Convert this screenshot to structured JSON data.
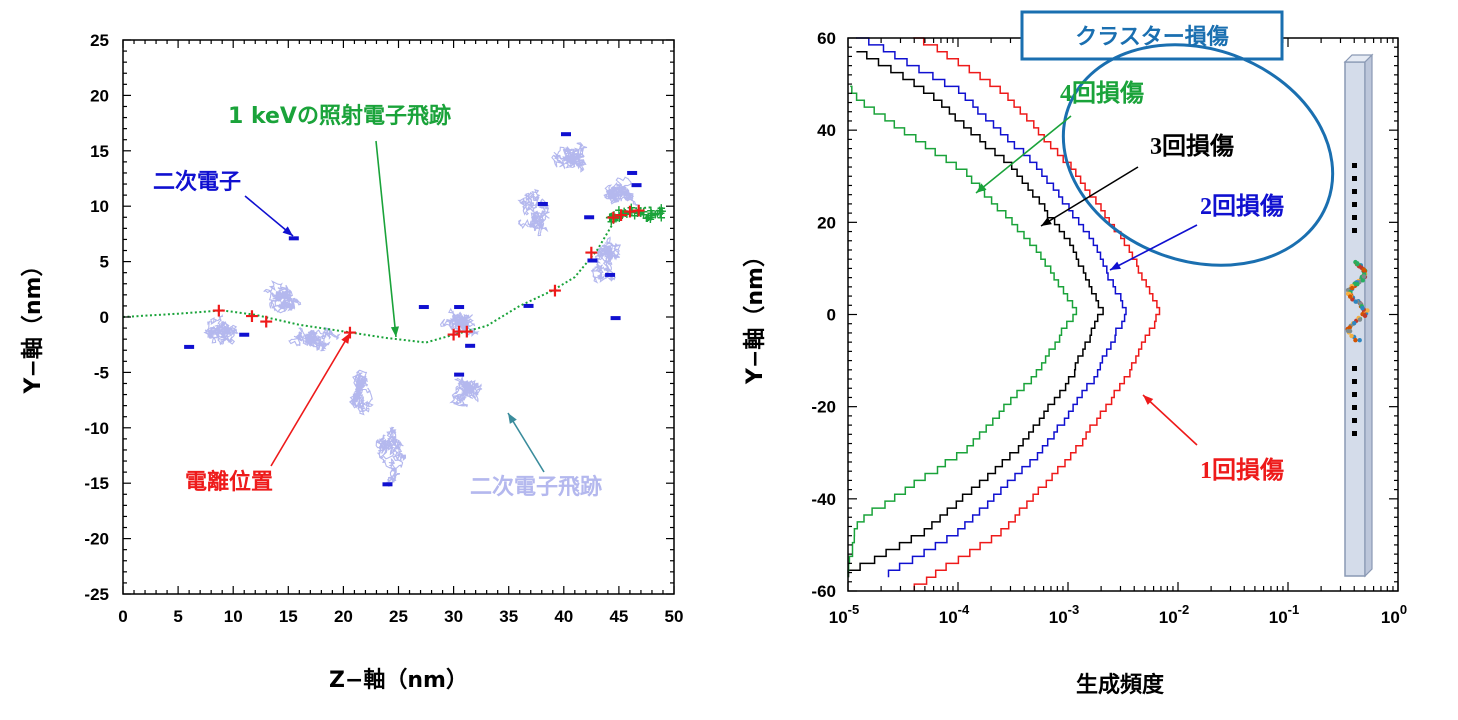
{
  "colors": {
    "green": "#1aa33a",
    "blue": "#1010d0",
    "red": "#ee1a1a",
    "black": "#000000",
    "lavender": "#b4b8ee",
    "teal": "#3a8c9c",
    "ellipse": "#1a6fb0",
    "banner_text": "#1a6fb0"
  },
  "chart_data": [
    {
      "type": "scatter",
      "xlabel": "Z−軸（nm）",
      "ylabel": "Y−軸（nm）",
      "xlim": [
        0,
        50
      ],
      "ylim": [
        -25,
        25
      ],
      "x_ticks": [
        "0",
        "5",
        "10",
        "15",
        "20",
        "25",
        "30",
        "35",
        "40",
        "45",
        "50"
      ],
      "y_ticks": [
        "25",
        "20",
        "15",
        "10",
        "5",
        "0",
        "-5",
        "-10",
        "-15",
        "-20",
        "-25"
      ],
      "grid": false,
      "annotations": {
        "primary": "1 keVの照射電子飛跡",
        "secondary_electron": "二次電子",
        "ionization": "電離位置",
        "secondary_track": "二次電子飛跡"
      },
      "primary_track": [
        [
          0,
          0
        ],
        [
          5,
          0.3
        ],
        [
          9,
          0.6
        ],
        [
          12,
          0.2
        ],
        [
          16,
          -0.7
        ],
        [
          20,
          -1.3
        ],
        [
          24,
          -1.9
        ],
        [
          27.5,
          -2.3
        ],
        [
          30,
          -1.6
        ],
        [
          33,
          -0.8
        ],
        [
          36,
          1.0
        ],
        [
          39,
          2.4
        ],
        [
          41,
          3.6
        ],
        [
          43,
          6.0
        ],
        [
          44.5,
          8.5
        ],
        [
          46.5,
          9.8
        ],
        [
          48,
          9.9
        ]
      ],
      "ionization_points": [
        [
          8.7,
          0.6
        ],
        [
          11.7,
          0.1
        ],
        [
          13,
          -0.4
        ],
        [
          20.6,
          -1.4
        ],
        [
          30,
          -1.6
        ],
        [
          30.5,
          -1.3
        ],
        [
          31.2,
          -1.3
        ],
        [
          39.2,
          2.4
        ],
        [
          42.5,
          5.8
        ],
        [
          44.5,
          9.0
        ],
        [
          45.2,
          9.2
        ],
        [
          46,
          9.5
        ],
        [
          46.8,
          9.6
        ]
      ],
      "secondary_endpoints": [
        [
          6,
          -2.7
        ],
        [
          11,
          -1.6
        ],
        [
          15.5,
          7.1
        ],
        [
          24,
          -15.1
        ],
        [
          27.3,
          0.9
        ],
        [
          30.5,
          0.9
        ],
        [
          31.5,
          -2.6
        ],
        [
          30.5,
          -5.2
        ],
        [
          36.8,
          1.0
        ],
        [
          38.1,
          10.2
        ],
        [
          40.2,
          16.5
        ],
        [
          42.3,
          9.0
        ],
        [
          42.6,
          5.1
        ],
        [
          44.2,
          3.8
        ],
        [
          46.2,
          13.0
        ],
        [
          46.6,
          11.9
        ],
        [
          44.7,
          -0.1
        ]
      ],
      "secondary_clusters": [
        {
          "cx": 8.5,
          "cy": -1.5,
          "sx": 3.0,
          "sy": 1.8
        },
        {
          "cx": 14.5,
          "cy": 2.0,
          "sx": 2.0,
          "sy": 3.5
        },
        {
          "cx": 17.5,
          "cy": -2.0,
          "sx": 2.5,
          "sy": 1.5
        },
        {
          "cx": 21.5,
          "cy": -6.5,
          "sx": 1.5,
          "sy": 4.0
        },
        {
          "cx": 24.5,
          "cy": -11.5,
          "sx": 1.8,
          "sy": 2.8
        },
        {
          "cx": 30.5,
          "cy": -0.5,
          "sx": 1.8,
          "sy": 1.8
        },
        {
          "cx": 31.0,
          "cy": -6.5,
          "sx": 2.2,
          "sy": 1.6
        },
        {
          "cx": 37.5,
          "cy": 9.0,
          "sx": 2.2,
          "sy": 3.5
        },
        {
          "cx": 41.0,
          "cy": 14.5,
          "sx": 2.0,
          "sy": 1.8
        },
        {
          "cx": 44.0,
          "cy": 5.0,
          "sx": 1.8,
          "sy": 3.5
        },
        {
          "cx": 45.5,
          "cy": 11.0,
          "sx": 2.0,
          "sy": 2.2
        }
      ]
    },
    {
      "type": "line",
      "xlabel": "生成頻度",
      "ylabel": "Y−軸（nm）",
      "x_scale": "log",
      "xlim": [
        1e-05,
        1
      ],
      "ylim": [
        -60,
        60
      ],
      "x_ticks": [
        {
          "base": "10",
          "exp": "-5"
        },
        {
          "base": "10",
          "exp": "-4"
        },
        {
          "base": "10",
          "exp": "-3"
        },
        {
          "base": "10",
          "exp": "-2"
        },
        {
          "base": "10",
          "exp": "-1"
        },
        {
          "base": "10",
          "exp": "0"
        }
      ],
      "y_ticks": [
        "60",
        "40",
        "20",
        "0",
        "-20",
        "-40",
        "-60"
      ],
      "grid": false,
      "banner": "クラスター損傷",
      "series": [
        {
          "name": "1回損傷",
          "color": "red",
          "label_pos": "right",
          "x": [
            4e-05,
            0.00025,
            0.0012,
            0.0035,
            0.0068,
            0.0068,
            0.0035,
            0.0012,
            0.00025,
            4e-05
          ],
          "y": [
            60,
            48,
            30,
            14,
            0,
            0,
            -14,
            -30,
            -48,
            -60
          ]
        },
        {
          "name": "2回損傷",
          "color": "blue",
          "label_pos": "right",
          "x": [
            1.2e-05,
            0.0001,
            0.0006,
            0.0018,
            0.0034,
            0.0034,
            0.0018,
            0.0006,
            0.0001,
            2e-05
          ],
          "y": [
            60,
            48,
            30,
            14,
            0,
            0,
            -14,
            -30,
            -48,
            -58
          ]
        },
        {
          "name": "3回損傷",
          "color": "black",
          "label_pos": "right",
          "x": [
            1e-05,
            5e-05,
            0.00035,
            0.0011,
            0.002,
            0.002,
            0.0011,
            0.00035,
            5e-05,
            1e-05
          ],
          "y": [
            58,
            48,
            30,
            14,
            0,
            0,
            -14,
            -30,
            -48,
            -57
          ]
        },
        {
          "name": "4回損傷",
          "color": "green",
          "label_pos": "right",
          "x": [
            1e-05,
            1.2e-05,
            0.00012,
            0.0005,
            0.0012,
            0.0012,
            0.0005,
            0.00012,
            1.2e-05,
            1e-05
          ],
          "y": [
            50,
            46,
            30,
            14,
            0,
            0,
            -14,
            -30,
            -46,
            -57
          ]
        }
      ]
    }
  ]
}
